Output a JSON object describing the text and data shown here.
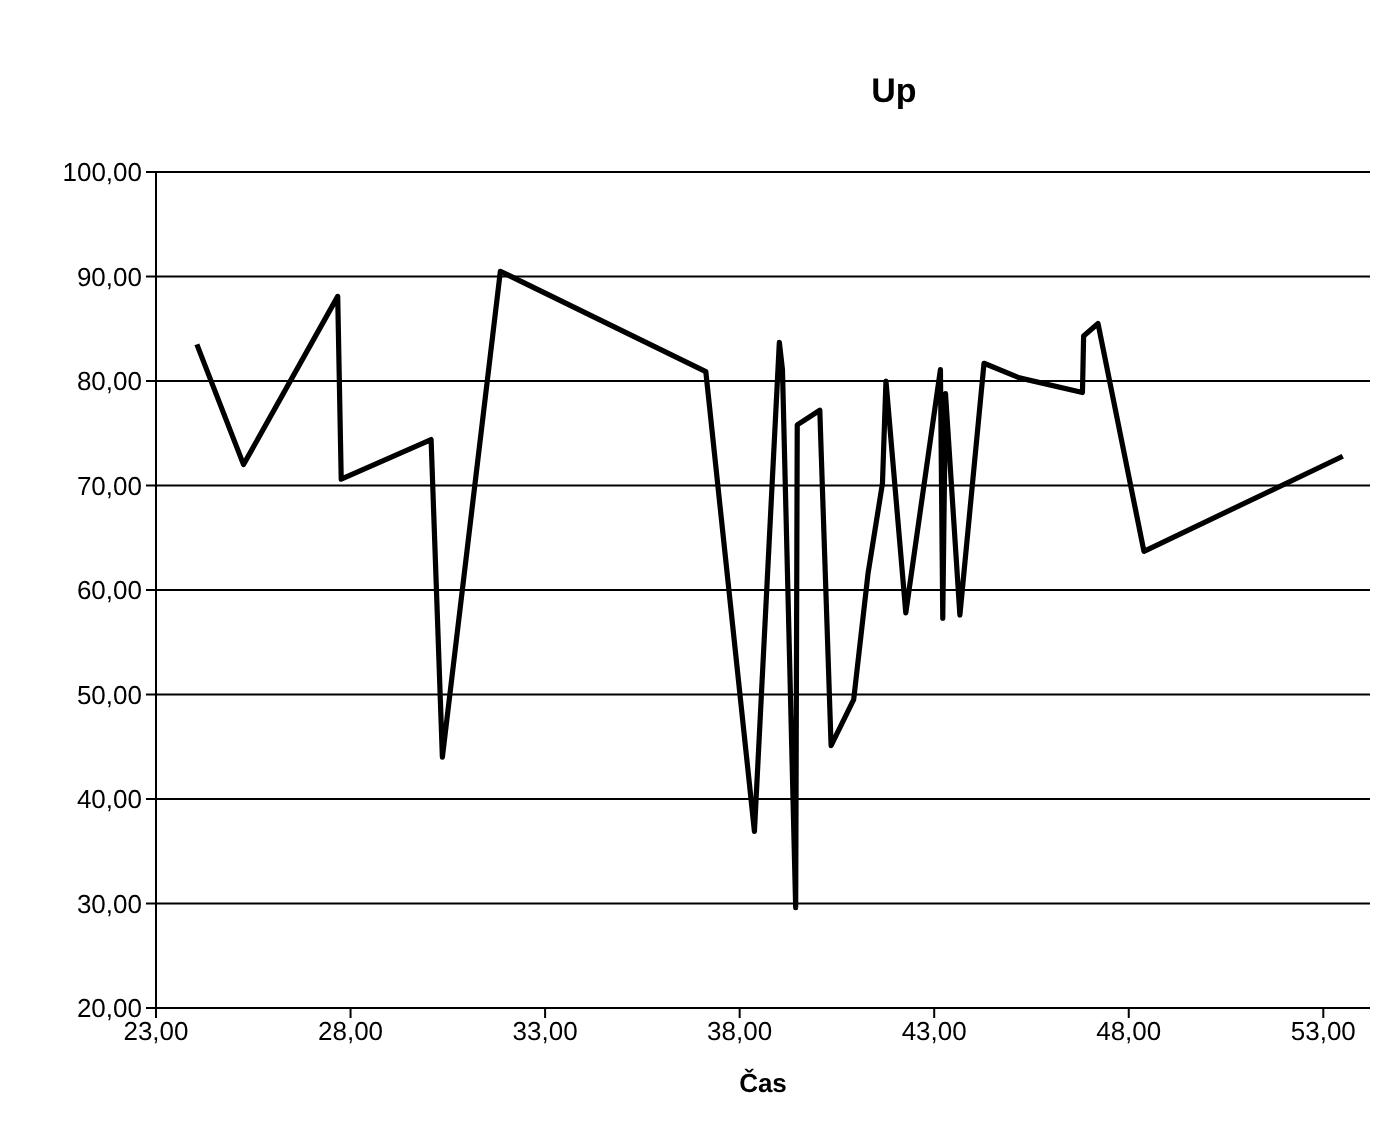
{
  "chart_data": {
    "type": "line",
    "title": "Up",
    "xlabel": "Čas",
    "x": [
      24.05,
      25.25,
      27.67,
      27.76,
      30.07,
      30.36,
      31.85,
      37.13,
      38.38,
      39.02,
      39.1,
      39.44,
      39.48,
      40.06,
      40.1,
      40.35,
      40.93,
      41.3,
      41.67,
      41.76,
      42.27,
      43.16,
      43.22,
      43.29,
      43.66,
      44.28,
      45.19,
      46.81,
      46.84,
      47.21,
      48.39,
      53.5
    ],
    "series": [
      {
        "color": "#000000",
        "values": [
          83.5,
          72.0,
          88.1,
          70.6,
          74.4,
          44.0,
          90.5,
          80.9,
          36.9,
          83.7,
          81.1,
          29.6,
          75.8,
          77.2,
          72.7,
          45.1,
          49.5,
          61.6,
          70.2,
          80.0,
          57.8,
          81.1,
          57.3,
          78.8,
          57.6,
          81.7,
          80.3,
          78.9,
          84.3,
          85.5,
          63.7,
          72.8
        ]
      }
    ],
    "xlim": [
      23,
      54.2
    ],
    "xticks": [
      {
        "value": 23,
        "label": "23,00"
      },
      {
        "value": 28,
        "label": "28,00"
      },
      {
        "value": 33,
        "label": "33,00"
      },
      {
        "value": 38,
        "label": "38,00"
      },
      {
        "value": 43,
        "label": "43,00"
      },
      {
        "value": 48,
        "label": "48,00"
      },
      {
        "value": 53,
        "label": "53,00"
      }
    ],
    "ylim": [
      20,
      100
    ],
    "yticks": [
      {
        "value": 20,
        "label": "20,00"
      },
      {
        "value": 30,
        "label": "30,00"
      },
      {
        "value": 40,
        "label": "40,00"
      },
      {
        "value": 50,
        "label": "50,00"
      },
      {
        "value": 60,
        "label": "60,00"
      },
      {
        "value": 70,
        "label": "70,00"
      },
      {
        "value": 80,
        "label": "80,00"
      },
      {
        "value": 90,
        "label": "90,00"
      },
      {
        "value": 100,
        "label": "100,00"
      }
    ],
    "grid": "y",
    "legend": false,
    "marker": "none",
    "line_style": "solid"
  }
}
